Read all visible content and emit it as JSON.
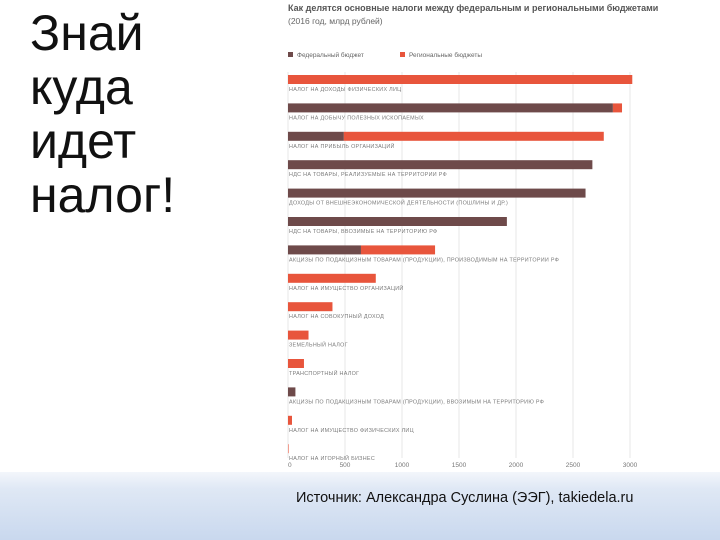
{
  "slide": {
    "title_lines": [
      "Знай",
      "куда",
      "идет",
      "налог!"
    ],
    "source": "Источник: Александра Суслина (ЭЭГ), takiedela.ru"
  },
  "chart_data": {
    "type": "bar",
    "orientation": "horizontal",
    "title": "Как делятся основные налоги между федеральным и региональными бюджетами",
    "subtitle": "(2016 год, млрд рублей)",
    "categories": [
      "Налог на доходы физических лиц",
      "Налог на добычу полезных ископаемых",
      "Налог на прибыль организаций",
      "НДС на товары, реализуемые на территории РФ",
      "Доходы от внешнеэкономической деятельности (пошлины и др.)",
      "НДС на товары, ввозимые на территорию РФ",
      "Акцизы по подакцизным товарам (продукции), производимым на территории РФ",
      "Налог на имущество организаций",
      "Налог на совокупный доход",
      "Земельный налог",
      "Транспортный налог",
      "Акцизы по подакцизным товарам (продукции), ввозимым на территорию РФ",
      "Налог на имущество физических лиц",
      "Налог на игорный бизнес"
    ],
    "series": [
      {
        "name": "Федеральный бюджет",
        "color": "#6e4a4a",
        "values": [
          0,
          2850,
          490,
          2670,
          2610,
          1920,
          640,
          0,
          0,
          0,
          0,
          65,
          0,
          0
        ]
      },
      {
        "name": "Региональные бюджеты",
        "color": "#e8553c",
        "values": [
          3020,
          80,
          2280,
          0,
          0,
          0,
          650,
          770,
          390,
          180,
          140,
          0,
          35,
          5
        ]
      }
    ],
    "stacked": true,
    "xlim": [
      0,
      3000
    ],
    "xticks": [
      0,
      500,
      1000,
      1500,
      2000,
      2500,
      3000
    ],
    "grid": true,
    "legend_position": "top-left"
  }
}
